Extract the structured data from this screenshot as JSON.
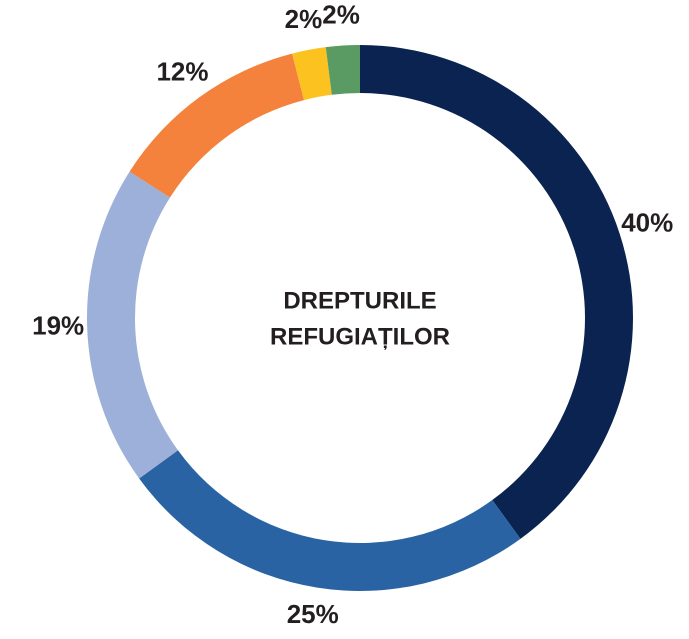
{
  "chart_data": {
    "type": "donut",
    "center_text": [
      "DREPTURILE",
      "REFUGIAȚILOR"
    ],
    "values": [
      40,
      25,
      19,
      12,
      2,
      2
    ],
    "value_labels": [
      "40%",
      "25%",
      "19%",
      "12%",
      "2%",
      "2%"
    ],
    "colors": [
      "#0b2350",
      "#2a63a3",
      "#9db0d9",
      "#f4823c",
      "#fcc320",
      "#5a9a63"
    ]
  }
}
